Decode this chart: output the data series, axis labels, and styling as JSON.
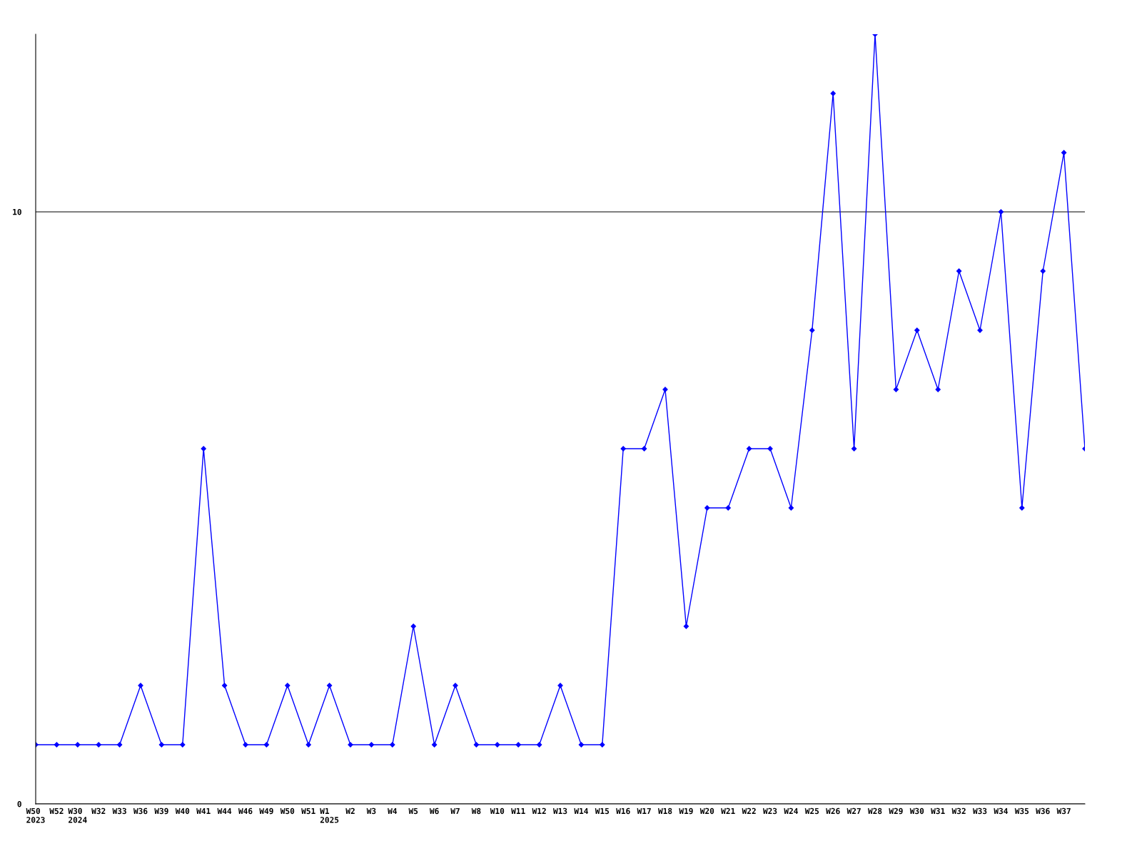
{
  "chart_data": {
    "type": "line",
    "categories": [
      "W50\n2023",
      "W52",
      "W30\n2024",
      "W32",
      "W33",
      "W36",
      "W39",
      "W40",
      "W41",
      "W44",
      "W46",
      "W49",
      "W50",
      "W51",
      "W1\n2025",
      "W2",
      "W3",
      "W4",
      "W5",
      "W6",
      "W7",
      "W8",
      "W10",
      "W11",
      "W12",
      "W13",
      "W14",
      "W15",
      "W16",
      "W17",
      "W18",
      "W19",
      "W20",
      "W21",
      "W22",
      "W23",
      "W24",
      "W25",
      "W26",
      "W27",
      "W28",
      "W29",
      "W30",
      "W31",
      "W32",
      "W33",
      "W34",
      "W35",
      "W36",
      "W37",
      null
    ],
    "series": [
      {
        "color": "#0000ff",
        "values": [
          1,
          1,
          1,
          1,
          1,
          2,
          1,
          1,
          6,
          2,
          1,
          1,
          2,
          1,
          2,
          1,
          1,
          1,
          3,
          1,
          2,
          1,
          1,
          1,
          1,
          2,
          1,
          1,
          6,
          6,
          7,
          3,
          5,
          5,
          6,
          6,
          5,
          8,
          12,
          6,
          13,
          7,
          8,
          7,
          9,
          8,
          10,
          5,
          9,
          11,
          6
        ]
      }
    ],
    "ylim": [
      0,
      13
    ],
    "yticks": [
      0,
      10
    ],
    "grid": "y",
    "marker": "diamond",
    "line_style": "solid",
    "legend": false
  }
}
